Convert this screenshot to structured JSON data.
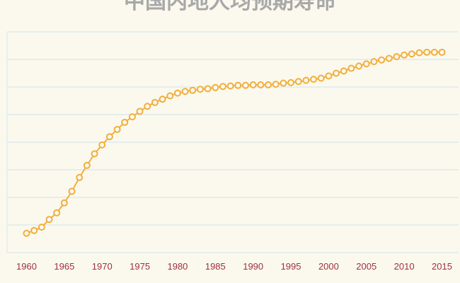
{
  "chart_data": {
    "type": "line",
    "title": "中国内地人均预期寿命",
    "xlabel": "",
    "ylabel": "",
    "x_ticks": [
      "1960",
      "1965",
      "1970",
      "1975",
      "1980",
      "1985",
      "1990",
      "1995",
      "2000",
      "2005",
      "2010",
      "2015"
    ],
    "xlim": [
      1960,
      2015
    ],
    "ylim": [
      40,
      80
    ],
    "grid": true,
    "legend": "none",
    "colors": {
      "line": "#f2ae3d",
      "tick_label": "#a0303e",
      "title": "#a8a8a8",
      "grid": "#cfe3ec",
      "background": "#fbf9ee"
    },
    "series": [
      {
        "x": [
          1960,
          1961,
          1962,
          1963,
          1964,
          1965,
          1966,
          1967,
          1968,
          1969,
          1970,
          1971,
          1972,
          1973,
          1974,
          1975,
          1976,
          1977,
          1978,
          1979,
          1980,
          1981,
          1982,
          1983,
          1984,
          1985,
          1986,
          1987,
          1988,
          1989,
          1990,
          1991,
          1992,
          1993,
          1994,
          1995,
          1996,
          1997,
          1998,
          1999,
          2000,
          2001,
          2002,
          2003,
          2004,
          2005,
          2006,
          2007,
          2008,
          2009,
          2010,
          2011,
          2012,
          2013,
          2014,
          2015
        ],
        "values": [
          43.5,
          44.0,
          44.6,
          46.0,
          47.2,
          49.0,
          51.1,
          53.6,
          55.8,
          57.9,
          59.5,
          61.0,
          62.3,
          63.6,
          64.6,
          65.6,
          66.5,
          67.2,
          67.8,
          68.4,
          68.9,
          69.2,
          69.4,
          69.6,
          69.7,
          69.9,
          70.1,
          70.2,
          70.3,
          70.3,
          70.4,
          70.4,
          70.4,
          70.5,
          70.7,
          70.8,
          71.0,
          71.2,
          71.4,
          71.6,
          72.0,
          72.5,
          72.9,
          73.4,
          73.8,
          74.2,
          74.6,
          74.9,
          75.2,
          75.5,
          75.8,
          76.0,
          76.2,
          76.3,
          76.3,
          76.3
        ]
      }
    ]
  }
}
